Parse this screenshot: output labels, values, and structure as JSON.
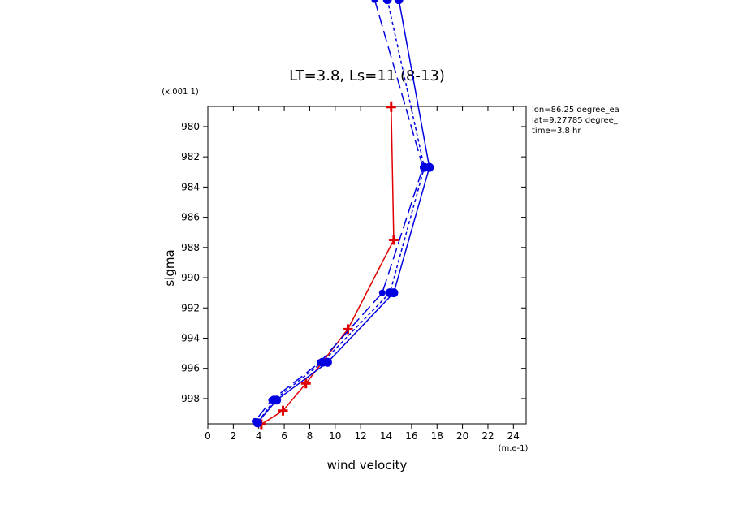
{
  "chart_data": {
    "type": "profile",
    "title": "LT=3.8, Ls=11 (8-13)",
    "y_unit_label": "(x.001 1)",
    "x_unit_label": "(m.e-1)",
    "x_label": "wind velocity",
    "y_label": "sigma",
    "annotations": [
      "lon=86.25 degree_ea",
      "lat=9.27785 degree_",
      "time=3.8 hr"
    ],
    "xlim": [
      0,
      25
    ],
    "ylim": [
      978.66,
      999.67
    ],
    "y_inverted": true,
    "xticks": [
      0,
      2,
      4,
      6,
      8,
      10,
      12,
      14,
      16,
      18,
      20,
      22,
      24
    ],
    "yticks": [
      980,
      982,
      984,
      986,
      988,
      990,
      992,
      994,
      996,
      998
    ],
    "series": [
      {
        "color": "#e00000",
        "dash": "solid",
        "marker": "plus",
        "x": [
          14.4,
          14.6,
          11.0,
          7.7,
          5.9,
          4.2
        ],
        "values": [
          978.7,
          987.5,
          993.4,
          997.0,
          998.8,
          999.7
        ]
      },
      {
        "color": "#0000e0",
        "dash": "solid",
        "marker": "circle",
        "x": [
          15.0,
          17.4,
          14.6,
          9.4,
          5.4,
          3.9
        ],
        "values": [
          971.6,
          982.7,
          991.0,
          995.6,
          998.1,
          999.6
        ]
      },
      {
        "color": "#0000e0",
        "dash": "short",
        "marker": "circle",
        "x": [
          14.1,
          17.0,
          14.3,
          9.0,
          5.2,
          3.9
        ],
        "values": [
          971.6,
          982.7,
          991.0,
          995.6,
          998.1,
          999.6
        ]
      },
      {
        "color": "#0000e0",
        "dash": "long",
        "marker": "small-circle",
        "x": [
          13.1,
          16.9,
          13.7,
          8.8,
          5.0,
          3.7
        ],
        "values": [
          971.6,
          982.7,
          991.0,
          995.6,
          998.1,
          999.5
        ]
      }
    ]
  }
}
